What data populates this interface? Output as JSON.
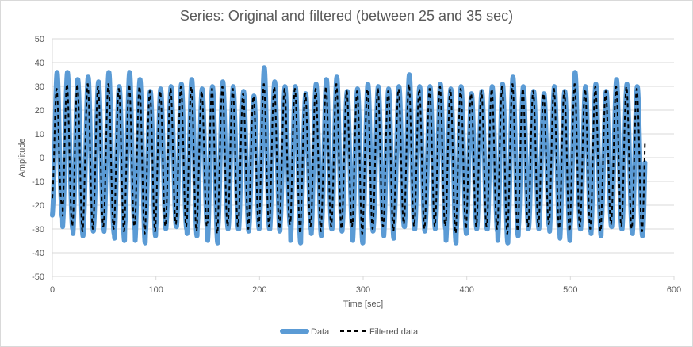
{
  "chart_data": {
    "type": "line",
    "title": "Series: Original and filtered (between 25 and 35 sec)",
    "xlabel": "Time [sec]",
    "ylabel": "Amplitude",
    "xlim": [
      0,
      600
    ],
    "ylim": [
      -50,
      50
    ],
    "x_ticks": [
      0,
      100,
      200,
      300,
      400,
      500,
      600
    ],
    "y_ticks": [
      -50,
      -40,
      -30,
      -20,
      -10,
      0,
      10,
      20,
      30,
      40,
      50
    ],
    "grid": "horizontal",
    "legend_position": "bottom",
    "series": [
      {
        "name": "Data",
        "color": "#5b9bd5",
        "x_range": [
          0,
          572
        ],
        "dominant_period_sec": 10,
        "peak_values": [
          36,
          36,
          33,
          34,
          32,
          36,
          30,
          36,
          33,
          28,
          29,
          30,
          31,
          33,
          29,
          30,
          32,
          30,
          28,
          26,
          38,
          32,
          30,
          30,
          27,
          31,
          33,
          34,
          28,
          29,
          31,
          30,
          29,
          30,
          35,
          30,
          30,
          31,
          29,
          30,
          27,
          28,
          30,
          31,
          34,
          30,
          28,
          27,
          30,
          28,
          36,
          30,
          31,
          28,
          33,
          31,
          30
        ],
        "trough_values": [
          -25,
          -30,
          -33,
          -31,
          -30,
          -32,
          -35,
          -30,
          -36,
          -33,
          -30,
          -29,
          -30,
          -33,
          -30,
          -36,
          -30,
          -30,
          -31,
          -30,
          -30,
          -31,
          -29,
          -36,
          -30,
          -33,
          -30,
          -31,
          -30,
          -36,
          -31,
          -30,
          -34,
          -29,
          -30,
          -31,
          -30,
          -30,
          -36,
          -32,
          -30,
          -30,
          -31,
          -36,
          -33,
          -30,
          -30,
          -29,
          -32,
          -35,
          -30,
          -31,
          -33,
          -29,
          -30,
          -31,
          -33
        ]
      },
      {
        "name": "Filtered data",
        "color": "#000000",
        "x_range": [
          0,
          572
        ],
        "dominant_period_sec": 10,
        "peak_values": [
          29,
          31,
          31,
          31,
          30,
          31,
          29,
          31,
          30,
          28,
          28,
          29,
          30,
          30,
          28,
          29,
          30,
          29,
          27,
          26,
          31,
          30,
          29,
          29,
          27,
          29,
          30,
          31,
          28,
          28,
          29,
          29,
          28,
          29,
          31,
          29,
          29,
          30,
          29,
          29,
          27,
          28,
          29,
          30,
          31,
          29,
          28,
          27,
          29,
          28,
          31,
          29,
          30,
          28,
          30,
          30,
          29
        ],
        "trough_values": [
          -20,
          -29,
          -31,
          -30,
          -29,
          -30,
          -31,
          -29,
          -32,
          -31,
          -29,
          -28,
          -29,
          -31,
          -29,
          -32,
          -29,
          -29,
          -30,
          -29,
          -29,
          -30,
          -28,
          -32,
          -29,
          -31,
          -29,
          -30,
          -29,
          -32,
          -30,
          -29,
          -31,
          -28,
          -29,
          -30,
          -29,
          -29,
          -32,
          -30,
          -29,
          -29,
          -30,
          -32,
          -31,
          -29,
          -29,
          -28,
          -30,
          -31,
          -29,
          -30,
          -31,
          -28,
          -29,
          -30,
          -31
        ]
      }
    ]
  }
}
